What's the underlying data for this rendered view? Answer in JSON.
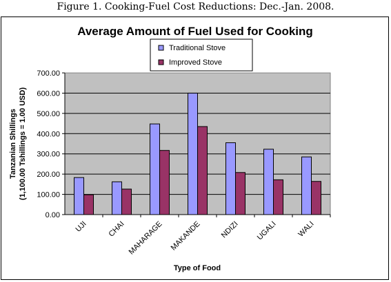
{
  "figure_caption": "Figure 1. Cooking-Fuel Cost Reductions: Dec.-Jan. 2008.",
  "chart_data": {
    "type": "bar",
    "title": "Average Amount of Fuel Used for Cooking",
    "categories": [
      "UJI",
      "CHAI",
      "MAHARAGE",
      "MAKANDE",
      "NDIZI",
      "UGALI",
      "WALI"
    ],
    "series": [
      {
        "name": "Traditional Stove",
        "color": "#9999ff",
        "values": [
          183,
          162,
          448,
          600,
          355,
          323,
          285
        ]
      },
      {
        "name": "Improved Stove",
        "color": "#993366",
        "values": [
          98,
          126,
          317,
          435,
          208,
          172,
          164
        ]
      }
    ],
    "xlabel": "Type of Food",
    "ylabel_line1": "Tanzanian Shillings",
    "ylabel_line2": "(1,100.00 Tshillings = 1.00 USD)",
    "ylim": [
      0,
      700
    ],
    "yticks": [
      "0.00",
      "100.00",
      "200.00",
      "300.00",
      "400.00",
      "500.00",
      "600.00",
      "700.00"
    ],
    "plot_background": "#c0c0c0",
    "gridlines": true,
    "legend_position": "top-center"
  }
}
